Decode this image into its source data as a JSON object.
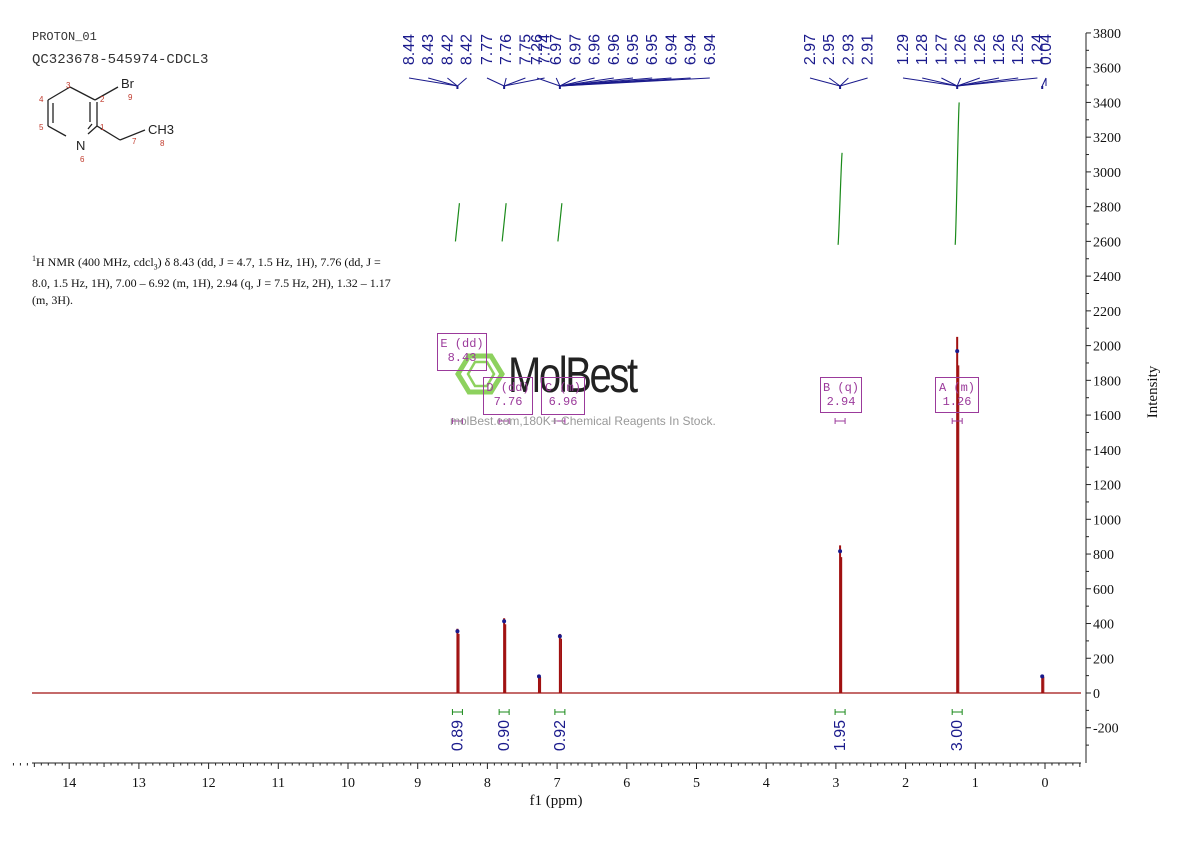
{
  "header": {
    "experiment_id": "PROTON_01",
    "sample_name": "QC323678-545974-CDCL3"
  },
  "structure": {
    "atoms": [
      "3",
      "Br",
      "4",
      "2",
      "9",
      "5",
      "1",
      "CH3",
      "N",
      "7",
      "8",
      "6"
    ]
  },
  "nmr_description": {
    "iso": "1",
    "text_a": "H NMR (400 MHz, cdcl",
    "sub": "3",
    "text_b": ") δ 8.43 (dd, J = 4.7, 1.5 Hz, 1H), 7.76 (dd, J = 8.0, 1.5 Hz, 1H), 7.00 – 6.92 (m, 1H), 2.94 (q, J = 7.5 Hz, 2H), 1.32 – 1.17 (m, 3H)."
  },
  "watermark": {
    "brand": "MolBest",
    "tagline": "molBest.com,180K+ Chemical Reagents In Stock."
  },
  "colors": {
    "spectrum": "#a01010",
    "integral": "#1a8a1a",
    "label": "#1a1a8c",
    "multiplet": "#9b3a9b",
    "logo": "#7ac943"
  },
  "chart_data": {
    "type": "line",
    "xlabel": "f1 (ppm)",
    "ylabel": "Intensity",
    "xlim": [
      14.8,
      -0.55
    ],
    "ylim": [
      -400,
      3800
    ],
    "x_reversed": true,
    "x_ticks": [
      14,
      13,
      12,
      11,
      10,
      9,
      8,
      7,
      6,
      5,
      4,
      3,
      2,
      1,
      0
    ],
    "y_ticks": [
      -200,
      0,
      200,
      400,
      600,
      800,
      1000,
      1200,
      1400,
      1600,
      1800,
      2000,
      2200,
      2400,
      2600,
      2800,
      3000,
      3200,
      3400,
      3600,
      3800
    ],
    "peaks": [
      {
        "ppm": 8.43,
        "height": 370
      },
      {
        "ppm": 7.76,
        "height": 430
      },
      {
        "ppm": 7.26,
        "height": 100
      },
      {
        "ppm": 6.96,
        "height": 340
      },
      {
        "ppm": 2.94,
        "height": 850
      },
      {
        "ppm": 1.26,
        "height": 2050
      },
      {
        "ppm": 0.04,
        "height": 100
      }
    ],
    "peak_labels": [
      {
        "group": 1,
        "values": [
          "8.44",
          "8.43",
          "8.42",
          "8.42"
        ],
        "center_ppm": 8.43
      },
      {
        "group": 2,
        "values": [
          "7.77",
          "7.76",
          "7.75",
          "7.74"
        ],
        "center_ppm": 7.76
      },
      {
        "group": 3,
        "values": [
          "7.26",
          "6.97",
          "6.97",
          "6.96",
          "6.96",
          "6.95",
          "6.95",
          "6.94",
          "6.94",
          "6.94"
        ],
        "center_ppm": 6.96
      },
      {
        "group": 4,
        "values": [
          "2.97",
          "2.95",
          "2.93",
          "2.91"
        ],
        "center_ppm": 2.94
      },
      {
        "group": 5,
        "values": [
          "1.29",
          "1.28",
          "1.27",
          "1.26",
          "1.26",
          "1.26",
          "1.25",
          "1.24"
        ],
        "center_ppm": 1.26
      },
      {
        "group": 6,
        "values": [
          "0.04"
        ],
        "center_ppm": 0.04
      }
    ],
    "integrals": [
      {
        "ppm": 8.43,
        "value": "0.89",
        "curve_start": 2600,
        "curve_end": 2820
      },
      {
        "ppm": 7.76,
        "value": "0.90",
        "curve_start": 2600,
        "curve_end": 2820
      },
      {
        "ppm": 6.96,
        "value": "0.92",
        "curve_start": 2600,
        "curve_end": 2820
      },
      {
        "ppm": 2.94,
        "value": "1.95",
        "curve_start": 2580,
        "curve_end": 3110
      },
      {
        "ppm": 1.26,
        "value": "3.00",
        "curve_start": 2580,
        "curve_end": 3400
      }
    ],
    "multiplets": [
      {
        "letter": "E",
        "type": "dd",
        "value": "8.43",
        "ppm": 8.43
      },
      {
        "letter": "D",
        "type": "dd",
        "value": "7.76",
        "ppm": 7.76
      },
      {
        "letter": "C",
        "type": "m",
        "value": "6.96",
        "ppm": 6.96
      },
      {
        "letter": "B",
        "type": "q",
        "value": "2.94",
        "ppm": 2.94
      },
      {
        "letter": "A",
        "type": "m",
        "value": "1.26",
        "ppm": 1.26
      }
    ]
  }
}
